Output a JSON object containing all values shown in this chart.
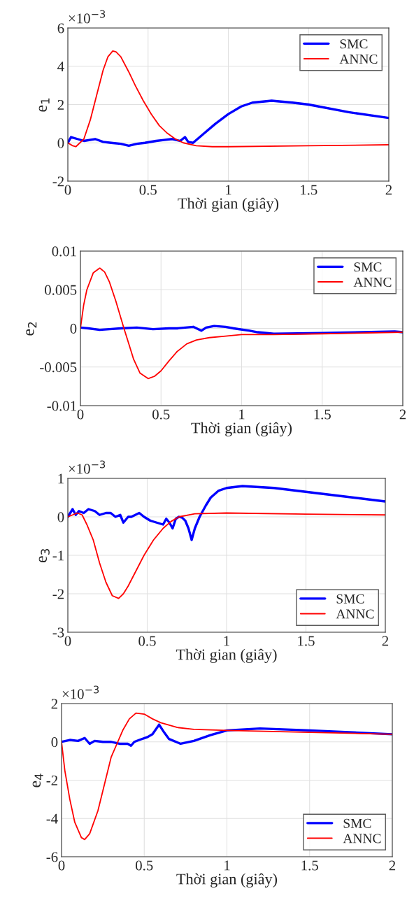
{
  "chart_data": [
    {
      "type": "line",
      "xlabel": "Thời gian (giây)",
      "ylabel": "e$_{1}$",
      "annotations": [
        "×10$^{−3}$"
      ],
      "xlim": [
        0,
        2
      ],
      "ylim": [
        -2,
        6
      ],
      "xticks": [
        0,
        0.5,
        1,
        1.5,
        2
      ],
      "yticks": [
        -2,
        0,
        2,
        4,
        6
      ],
      "grid": true,
      "legend": "top right",
      "line_style": "solid",
      "series": [
        {
          "name": "SMC",
          "color": "#0000ff",
          "x": [
            0,
            0.02,
            0.06,
            0.1,
            0.17,
            0.22,
            0.27,
            0.33,
            0.38,
            0.43,
            0.48,
            0.55,
            0.6,
            0.65,
            0.7,
            0.73,
            0.75,
            0.78,
            0.85,
            0.92,
            1.0,
            1.08,
            1.15,
            1.27,
            1.4,
            1.5,
            1.75,
            2.0
          ],
          "values": [
            0,
            0.3,
            0.2,
            0.1,
            0.2,
            0.05,
            0,
            -0.05,
            -0.15,
            -0.05,
            0,
            0.1,
            0.15,
            0.2,
            0.1,
            0.3,
            0.05,
            0,
            0.5,
            1.0,
            1.5,
            1.9,
            2.1,
            2.2,
            2.1,
            2.0,
            1.6,
            1.3
          ]
        },
        {
          "name": "ANNC",
          "color": "#ff0000",
          "x": [
            0,
            0.03,
            0.05,
            0.1,
            0.14,
            0.18,
            0.22,
            0.25,
            0.28,
            0.3,
            0.33,
            0.38,
            0.42,
            0.47,
            0.52,
            0.57,
            0.62,
            0.67,
            0.72,
            0.8,
            0.9,
            1.0,
            1.5,
            2.0
          ],
          "values": [
            0,
            -0.15,
            -0.2,
            0.2,
            1.2,
            2.5,
            3.8,
            4.5,
            4.8,
            4.75,
            4.5,
            3.7,
            3.0,
            2.2,
            1.5,
            0.9,
            0.5,
            0.2,
            0,
            -0.15,
            -0.2,
            -0.2,
            -0.15,
            -0.1
          ]
        }
      ]
    },
    {
      "type": "line",
      "xlabel": "Thời gian (giây)",
      "ylabel": "e$_{2}$",
      "xlim": [
        0,
        2
      ],
      "ylim": [
        -0.01,
        0.01
      ],
      "xticks": [
        0,
        0.5,
        1,
        1.5,
        2
      ],
      "yticks": [
        -0.01,
        -0.005,
        0,
        0.005,
        0.01
      ],
      "grid": true,
      "legend": "top right",
      "line_style": "solid",
      "series": [
        {
          "name": "SMC",
          "color": "#0000ff",
          "x": [
            0,
            0.05,
            0.12,
            0.18,
            0.25,
            0.35,
            0.45,
            0.55,
            0.6,
            0.7,
            0.75,
            0.78,
            0.83,
            0.9,
            0.95,
            1.05,
            1.1,
            1.2,
            1.5,
            1.95,
            2.0
          ],
          "values": [
            0.0001,
            0,
            -0.0002,
            -0.0001,
            0,
            0.0001,
            -0.0001,
            0,
            0,
            0.0002,
            -0.0003,
            0.0001,
            0.0003,
            0.0002,
            0,
            -0.0003,
            -0.0005,
            -0.0007,
            -0.0006,
            -0.0004,
            -0.0005
          ]
        },
        {
          "name": "ANNC",
          "color": "#ff0000",
          "x": [
            0,
            0.02,
            0.04,
            0.08,
            0.12,
            0.15,
            0.18,
            0.22,
            0.27,
            0.3,
            0.33,
            0.37,
            0.42,
            0.46,
            0.5,
            0.55,
            0.6,
            0.66,
            0.72,
            0.8,
            0.9,
            1.0,
            1.2,
            1.5,
            2.0
          ],
          "values": [
            0,
            0.003,
            0.005,
            0.0072,
            0.0078,
            0.0073,
            0.006,
            0.0035,
            0,
            -0.002,
            -0.004,
            -0.0058,
            -0.0065,
            -0.0062,
            -0.0055,
            -0.0042,
            -0.003,
            -0.002,
            -0.0015,
            -0.0012,
            -0.001,
            -0.0008,
            -0.0008,
            -0.0007,
            -0.0005
          ]
        }
      ]
    },
    {
      "type": "line",
      "xlabel": "Thời gian (giây)",
      "ylabel": "e$_{3}$",
      "annotations": [
        "×10$^{−3}$"
      ],
      "xlim": [
        0,
        2
      ],
      "ylim": [
        -3,
        1
      ],
      "xticks": [
        0,
        0.5,
        1,
        1.5,
        2
      ],
      "yticks": [
        -3,
        -2,
        -1,
        0,
        1
      ],
      "grid": true,
      "legend": "bottom right",
      "line_style": "solid",
      "series": [
        {
          "name": "SMC",
          "color": "#0000ff",
          "x": [
            0,
            0.03,
            0.05,
            0.07,
            0.1,
            0.13,
            0.17,
            0.2,
            0.24,
            0.27,
            0.3,
            0.33,
            0.35,
            0.38,
            0.4,
            0.45,
            0.48,
            0.52,
            0.56,
            0.6,
            0.62,
            0.64,
            0.66,
            0.68,
            0.7,
            0.72,
            0.74,
            0.76,
            0.78,
            0.8,
            0.83,
            0.87,
            0.9,
            0.95,
            1.0,
            1.1,
            1.3,
            1.6,
            2.0
          ],
          "values": [
            0,
            0.2,
            0.05,
            0.15,
            0.1,
            0.2,
            0.15,
            0.05,
            0.1,
            0.1,
            0,
            0.05,
            -0.15,
            0,
            0,
            0.1,
            0,
            -0.1,
            -0.15,
            -0.2,
            -0.05,
            -0.15,
            -0.3,
            -0.05,
            0,
            -0.02,
            -0.1,
            -0.3,
            -0.6,
            -0.3,
            0,
            0.3,
            0.5,
            0.68,
            0.75,
            0.8,
            0.75,
            0.6,
            0.4
          ]
        },
        {
          "name": "ANNC",
          "color": "#ff0000",
          "x": [
            0,
            0.03,
            0.06,
            0.09,
            0.12,
            0.16,
            0.2,
            0.24,
            0.28,
            0.32,
            0.35,
            0.38,
            0.43,
            0.48,
            0.54,
            0.6,
            0.65,
            0.7,
            0.8,
            1.0,
            1.5,
            2.0
          ],
          "values": [
            0,
            0.05,
            0.1,
            0.05,
            -0.2,
            -0.6,
            -1.2,
            -1.7,
            -2.05,
            -2.12,
            -2.0,
            -1.8,
            -1.4,
            -1.0,
            -0.6,
            -0.3,
            -0.12,
            0,
            0.08,
            0.1,
            0.07,
            0.05
          ]
        }
      ]
    },
    {
      "type": "line",
      "xlabel": "Thời gian (giây)",
      "ylabel": "e$_{4}$",
      "annotations": [
        "×10$^{−3}$"
      ],
      "xlim": [
        0,
        2
      ],
      "ylim": [
        -6,
        2
      ],
      "xticks": [
        0,
        0.5,
        1,
        1.5,
        2
      ],
      "yticks": [
        -6,
        -4,
        -2,
        0,
        2
      ],
      "grid": true,
      "legend": "bottom right",
      "line_style": "solid",
      "series": [
        {
          "name": "SMC",
          "color": "#0000ff",
          "x": [
            0,
            0.05,
            0.1,
            0.14,
            0.17,
            0.2,
            0.25,
            0.3,
            0.35,
            0.4,
            0.42,
            0.44,
            0.47,
            0.52,
            0.55,
            0.59,
            0.62,
            0.65,
            0.72,
            0.8,
            0.9,
            1.0,
            1.2,
            1.5,
            2.0
          ],
          "values": [
            0,
            0.1,
            0.05,
            0.2,
            -0.1,
            0.05,
            0,
            0,
            -0.1,
            -0.1,
            -0.2,
            0,
            0.1,
            0.25,
            0.4,
            0.9,
            0.5,
            0.15,
            -0.1,
            0.05,
            0.35,
            0.6,
            0.7,
            0.6,
            0.4
          ]
        },
        {
          "name": "ANNC",
          "color": "#ff0000",
          "x": [
            0,
            0.02,
            0.05,
            0.08,
            0.12,
            0.14,
            0.17,
            0.22,
            0.26,
            0.3,
            0.34,
            0.37,
            0.41,
            0.45,
            0.5,
            0.55,
            0.6,
            0.7,
            0.8,
            1.0,
            1.5,
            2.0
          ],
          "values": [
            0,
            -1.5,
            -3.0,
            -4.2,
            -5.0,
            -5.1,
            -4.8,
            -3.6,
            -2.2,
            -0.8,
            0,
            0.6,
            1.2,
            1.5,
            1.45,
            1.2,
            1.0,
            0.75,
            0.65,
            0.6,
            0.5,
            0.4
          ]
        }
      ]
    }
  ]
}
